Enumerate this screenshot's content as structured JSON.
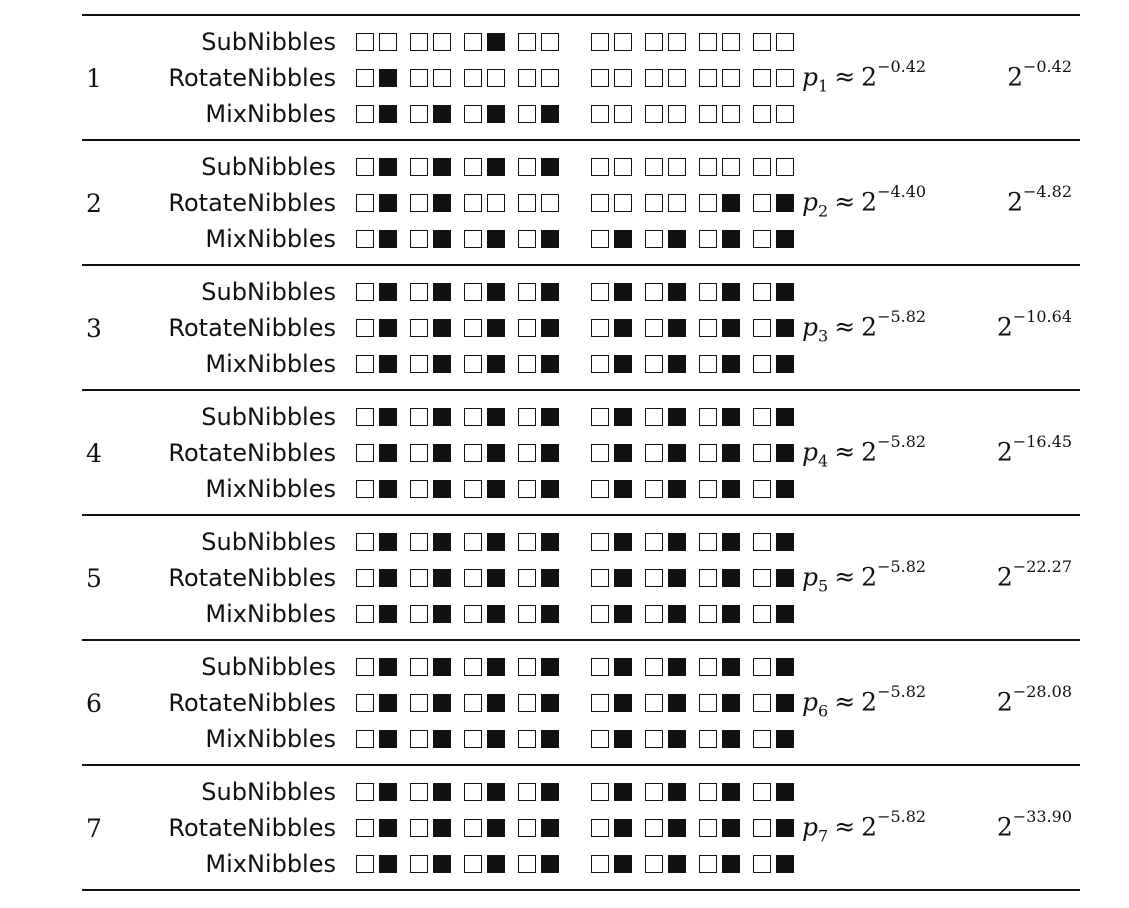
{
  "table": {
    "rounds": [
      {
        "round": "1",
        "steps": [
          {
            "op": "SubNibbles",
            "left": "00 00 01 00",
            "right": "00 00 00 00"
          },
          {
            "op": "RotateNibbles",
            "left": "01 00 00 00",
            "right": "00 00 00 00"
          },
          {
            "op": "MixNibbles",
            "left": "01 01 01 01",
            "right": "00 00 00 00"
          }
        ],
        "prob_var": "p",
        "prob_sub": "1",
        "approx": "≈",
        "base": "2",
        "prob_exp": "−0.42",
        "cum_base": "2",
        "cum_exp": "−0.42"
      },
      {
        "round": "2",
        "steps": [
          {
            "op": "SubNibbles",
            "left": "01 01 01 01",
            "right": "00 00 00 00"
          },
          {
            "op": "RotateNibbles",
            "left": "01 01 00 00",
            "right": "00 00 01 01"
          },
          {
            "op": "MixNibbles",
            "left": "01 01 01 01",
            "right": "01 01 01 01"
          }
        ],
        "prob_var": "p",
        "prob_sub": "2",
        "approx": "≈",
        "base": "2",
        "prob_exp": "−4.40",
        "cum_base": "2",
        "cum_exp": "−4.82"
      },
      {
        "round": "3",
        "steps": [
          {
            "op": "SubNibbles",
            "left": "01 01 01 01",
            "right": "01 01 01 01"
          },
          {
            "op": "RotateNibbles",
            "left": "01 01 01 01",
            "right": "01 01 01 01"
          },
          {
            "op": "MixNibbles",
            "left": "01 01 01 01",
            "right": "01 01 01 01"
          }
        ],
        "prob_var": "p",
        "prob_sub": "3",
        "approx": "≈",
        "base": "2",
        "prob_exp": "−5.82",
        "cum_base": "2",
        "cum_exp": "−10.64"
      },
      {
        "round": "4",
        "steps": [
          {
            "op": "SubNibbles",
            "left": "01 01 01 01",
            "right": "01 01 01 01"
          },
          {
            "op": "RotateNibbles",
            "left": "01 01 01 01",
            "right": "01 01 01 01"
          },
          {
            "op": "MixNibbles",
            "left": "01 01 01 01",
            "right": "01 01 01 01"
          }
        ],
        "prob_var": "p",
        "prob_sub": "4",
        "approx": "≈",
        "base": "2",
        "prob_exp": "−5.82",
        "cum_base": "2",
        "cum_exp": "−16.45"
      },
      {
        "round": "5",
        "steps": [
          {
            "op": "SubNibbles",
            "left": "01 01 01 01",
            "right": "01 01 01 01"
          },
          {
            "op": "RotateNibbles",
            "left": "01 01 01 01",
            "right": "01 01 01 01"
          },
          {
            "op": "MixNibbles",
            "left": "01 01 01 01",
            "right": "01 01 01 01"
          }
        ],
        "prob_var": "p",
        "prob_sub": "5",
        "approx": "≈",
        "base": "2",
        "prob_exp": "−5.82",
        "cum_base": "2",
        "cum_exp": "−22.27"
      },
      {
        "round": "6",
        "steps": [
          {
            "op": "SubNibbles",
            "left": "01 01 01 01",
            "right": "01 01 01 01"
          },
          {
            "op": "RotateNibbles",
            "left": "01 01 01 01",
            "right": "01 01 01 01"
          },
          {
            "op": "MixNibbles",
            "left": "01 01 01 01",
            "right": "01 01 01 01"
          }
        ],
        "prob_var": "p",
        "prob_sub": "6",
        "approx": "≈",
        "base": "2",
        "prob_exp": "−5.82",
        "cum_base": "2",
        "cum_exp": "−28.08"
      },
      {
        "round": "7",
        "steps": [
          {
            "op": "SubNibbles",
            "left": "01 01 01 01",
            "right": "01 01 01 01"
          },
          {
            "op": "RotateNibbles",
            "left": "01 01 01 01",
            "right": "01 01 01 01"
          },
          {
            "op": "MixNibbles",
            "left": "01 01 01 01",
            "right": "01 01 01 01"
          }
        ],
        "prob_var": "p",
        "prob_sub": "7",
        "approx": "≈",
        "base": "2",
        "prob_exp": "−5.82",
        "cum_base": "2",
        "cum_exp": "−33.90"
      }
    ]
  }
}
